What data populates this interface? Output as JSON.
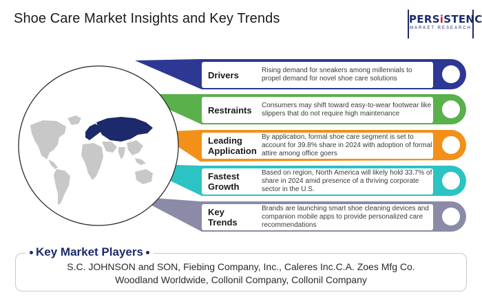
{
  "title": "Shoe Care Market Insights and Key Trends",
  "logo": {
    "main_a": "PERS",
    "main_b": "i",
    "main_c": "STENCE",
    "sub": "MARKET RESEARCH"
  },
  "colors": {
    "drivers": "#2d3794",
    "restraints": "#5ab04a",
    "leading": "#f39019",
    "fastest": "#2bc3c3",
    "trends": "#8b8ba8",
    "map_highlight": "#1c2a6b",
    "map_base": "#c8c8c8"
  },
  "items": [
    {
      "label_line1": "Drivers",
      "label_line2": "",
      "description": "Rising demand for sneakers among millennials to propel demand for novel shoe care solutions"
    },
    {
      "label_line1": "Restraints",
      "label_line2": "",
      "description": "Consumers may shift toward easy-to-wear footwear like slippers that do not require high maintenance"
    },
    {
      "label_line1": "Leading",
      "label_line2": "Application",
      "description": "By application, formal shoe care segment is set to account for 39.8% share in 2024 with adoption of formal attire among office goers"
    },
    {
      "label_line1": "Fastest",
      "label_line2": "Growth",
      "description": "Based on region, North America will likely hold 33.7% of share in 2024 amid presence of a thriving corporate sector in the U.S."
    },
    {
      "label_line1": "Key",
      "label_line2": "Trends",
      "description": "Brands are launching smart shoe cleaning devices and companion mobile apps to provide personalized care recommendations"
    }
  ],
  "players": {
    "heading": "Key Market Players",
    "line1": "S.C. JOHNSON and SON, Fiebing Company, Inc., Caleres Inc.C.A. Zoes Mfg Co.",
    "line2": "Woodland Worldwide, Collonil Company, Collonil Company"
  }
}
